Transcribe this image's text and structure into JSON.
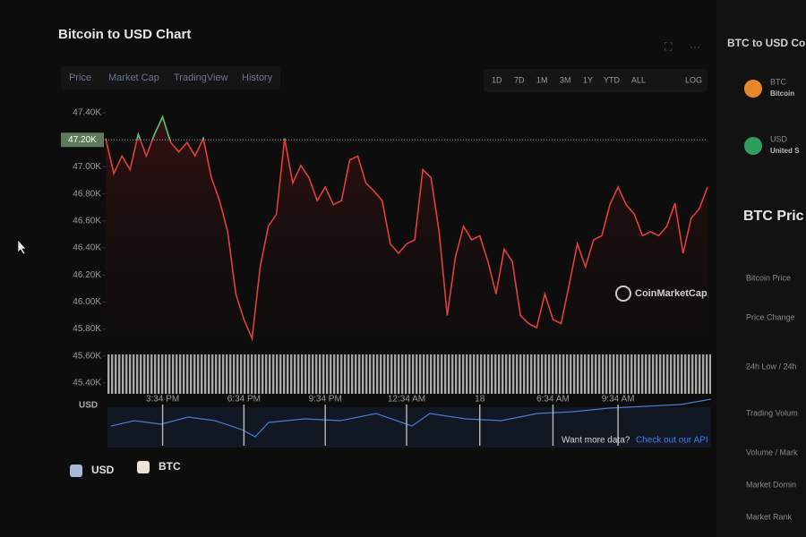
{
  "header": {
    "title": "Bitcoin to USD Chart"
  },
  "tabs": [
    "Price",
    "Market Cap",
    "TradingView",
    "History"
  ],
  "ranges": [
    "1D",
    "7D",
    "1M",
    "3M",
    "1Y",
    "YTD",
    "ALL",
    "LOG"
  ],
  "chart_data": {
    "type": "line",
    "series": [
      {
        "name": "Price",
        "color": "#e0403c",
        "above_color": "#4cc477",
        "values": [
          47210,
          46950,
          47080,
          46980,
          47240,
          47080,
          47240,
          47370,
          47180,
          47110,
          47180,
          47080,
          47210,
          46920,
          46750,
          46520,
          46060,
          45870,
          45730,
          46260,
          46560,
          46650,
          47210,
          46880,
          47010,
          46920,
          46750,
          46850,
          46720,
          46750,
          47050,
          47080,
          46880,
          46820,
          46750,
          46430,
          46360,
          46430,
          46460,
          46980,
          46920,
          46520,
          45900,
          46330,
          46560,
          46460,
          46490,
          46300,
          46060,
          46390,
          46300,
          45900,
          45840,
          45810,
          46060,
          45870,
          45840,
          46130,
          46430,
          46260,
          46460,
          46490,
          46720,
          46850,
          46720,
          46650,
          46490,
          46520,
          46490,
          46560,
          46730,
          46360,
          46620,
          46690,
          46850
        ]
      }
    ],
    "categories": [
      null,
      null,
      null,
      null,
      null,
      null,
      null,
      "3:34 PM",
      null,
      null,
      null,
      null,
      null,
      null,
      null,
      null,
      null,
      "6:34 PM",
      null,
      null,
      null,
      null,
      null,
      null,
      null,
      null,
      null,
      "9:34 PM",
      null,
      null,
      null,
      null,
      null,
      null,
      null,
      null,
      null,
      "12:34 AM",
      null,
      null,
      null,
      null,
      null,
      null,
      null,
      null,
      "18",
      null,
      null,
      null,
      null,
      null,
      null,
      null,
      null,
      "6:34 AM",
      null,
      null,
      null,
      null,
      null,
      null,
      null,
      "9:34 AM",
      null,
      null,
      null,
      null,
      null,
      null,
      null,
      null,
      null,
      null,
      null
    ],
    "ylim": [
      45360,
      47440
    ],
    "yticks": [
      {
        "value": 45400,
        "label": "45.40K"
      },
      {
        "value": 45600,
        "label": "45.60K"
      },
      {
        "value": 45800,
        "label": "45.80K"
      },
      {
        "value": 46000,
        "label": "46.00K"
      },
      {
        "value": 46200,
        "label": "46.20K"
      },
      {
        "value": 46400,
        "label": "46.40K"
      },
      {
        "value": 46600,
        "label": "46.60K"
      },
      {
        "value": 46800,
        "label": "46.80K"
      },
      {
        "value": 47000,
        "label": "47.00K"
      },
      {
        "value": 47200,
        "label": "47.20K"
      },
      {
        "value": 47400,
        "label": "47.40K"
      }
    ],
    "reference": {
      "value": 47200,
      "label": "47.20K"
    },
    "navigator_label": "USD",
    "legend": [
      {
        "name": "USD",
        "color": "#aab8d8"
      },
      {
        "name": "BTC",
        "color": "#e8e4d8"
      }
    ],
    "watermark": "CoinMarketCap"
  },
  "api_note": {
    "text": "Want more data?",
    "link": "Check out our API"
  },
  "sidebar": {
    "title": "BTC to USD Co",
    "coins": [
      {
        "symbol": "BTC",
        "name": "Bitcoin"
      },
      {
        "symbol": "USD",
        "name": "United S"
      }
    ],
    "stats_title": "BTC Pric",
    "stats": [
      "Bitcoin Price",
      "Price Change",
      "24h Low / 24h",
      "Trading Volum",
      "Volume / Mark",
      "Market Domin",
      "Market Rank"
    ]
  }
}
